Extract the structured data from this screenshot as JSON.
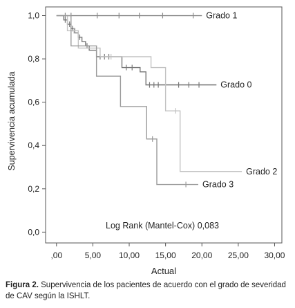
{
  "chart_data": {
    "type": "line",
    "subtype": "kaplan-meier",
    "xlabel": "Actual",
    "ylabel": "Supervivencia acumulada",
    "xlim": [
      -1.5,
      31
    ],
    "ylim": [
      -0.05,
      1.04
    ],
    "xticks": [
      0,
      5,
      10,
      15,
      20,
      25,
      30
    ],
    "xtick_labels": [
      ",00",
      "5,00",
      "10,00",
      "15,00",
      "20,00",
      "25,00",
      "30,00"
    ],
    "yticks": [
      0.0,
      0.2,
      0.4,
      0.6,
      0.8,
      1.0
    ],
    "ytick_labels": [
      "0,0",
      "0,2",
      "0,4",
      "0,6",
      "0,8",
      "1,0"
    ],
    "annotation": "Log Rank (Mantel-Cox) 0,083",
    "grid": false,
    "series": [
      {
        "name": "Grado 1",
        "color": "#8a8a8a",
        "steps": [
          [
            0,
            1.0
          ],
          [
            20,
            1.0
          ]
        ],
        "censored": [
          [
            1.2,
            1.0
          ],
          [
            2.0,
            1.0
          ],
          [
            5.6,
            1.0
          ],
          [
            8.6,
            1.0
          ],
          [
            11.4,
            1.0
          ],
          [
            14.6,
            1.0
          ],
          [
            18.8,
            1.0
          ]
        ]
      },
      {
        "name": "Grado 0",
        "color": "#777777",
        "steps": [
          [
            0,
            1.0
          ],
          [
            1.0,
            0.98
          ],
          [
            1.5,
            0.96
          ],
          [
            2.0,
            0.94
          ],
          [
            2.5,
            0.92
          ],
          [
            3.0,
            0.9
          ],
          [
            3.5,
            0.88
          ],
          [
            4.0,
            0.86
          ],
          [
            4.5,
            0.84
          ],
          [
            5.5,
            0.81
          ],
          [
            9.0,
            0.76
          ],
          [
            11.5,
            0.74
          ],
          [
            12.3,
            0.68
          ],
          [
            22,
            0.68
          ]
        ],
        "censored": [
          [
            1.2,
            0.98
          ],
          [
            1.8,
            0.96
          ],
          [
            2.2,
            0.94
          ],
          [
            3.2,
            0.9
          ],
          [
            4.2,
            0.86
          ],
          [
            6.0,
            0.81
          ],
          [
            6.6,
            0.81
          ],
          [
            7.2,
            0.81
          ],
          [
            9.6,
            0.76
          ],
          [
            10.4,
            0.76
          ],
          [
            12.8,
            0.68
          ],
          [
            13.4,
            0.68
          ],
          [
            14.0,
            0.68
          ],
          [
            16.8,
            0.68
          ],
          [
            18.2,
            0.68
          ],
          [
            19.6,
            0.68
          ]
        ]
      },
      {
        "name": "Grado 2",
        "color": "#c2c2c2",
        "steps": [
          [
            0,
            1.0
          ],
          [
            1.5,
            0.93
          ],
          [
            3.0,
            0.85
          ],
          [
            6.0,
            0.81
          ],
          [
            13.0,
            0.76
          ],
          [
            15.0,
            0.56
          ],
          [
            17.0,
            0.28
          ],
          [
            25.5,
            0.28
          ]
        ],
        "censored": [
          [
            2.4,
            0.93
          ],
          [
            7.5,
            0.81
          ],
          [
            16.4,
            0.56
          ]
        ]
      },
      {
        "name": "Grado 3",
        "color": "#9a9a9a",
        "steps": [
          [
            0,
            1.0
          ],
          [
            2.0,
            0.86
          ],
          [
            5.5,
            0.72
          ],
          [
            8.8,
            0.58
          ],
          [
            12.4,
            0.43
          ],
          [
            13.8,
            0.22
          ],
          [
            19.5,
            0.22
          ]
        ],
        "censored": [
          [
            13.2,
            0.43
          ],
          [
            17.8,
            0.22
          ]
        ]
      }
    ]
  },
  "caption": {
    "label": "Figura 2.",
    "text": " Supervivencia de los pacientes de acuerdo con el grado de severidad de CAV según la ISHLT."
  }
}
